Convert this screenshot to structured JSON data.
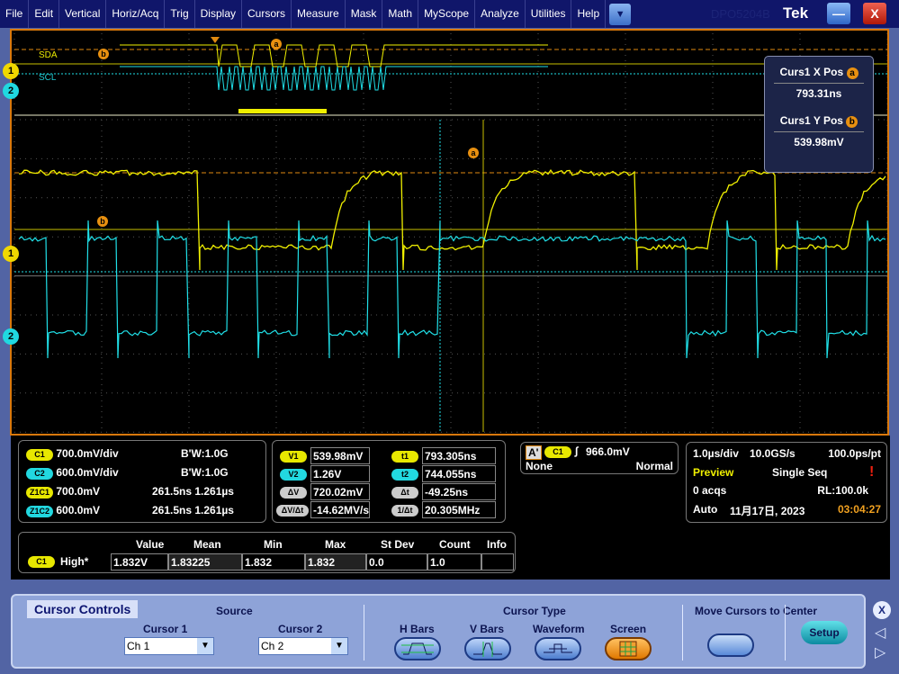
{
  "menubar": {
    "items": [
      "File",
      "Edit",
      "Vertical",
      "Horiz/Acq",
      "Trig",
      "Display",
      "Cursors",
      "Measure",
      "Mask",
      "Math",
      "MyScope",
      "Analyze",
      "Utilities",
      "Help"
    ],
    "model": "DPO5204B",
    "brand": "Tek",
    "minimize": "—",
    "close": "X"
  },
  "scope": {
    "overview_labels": {
      "sda": "SDA",
      "scl": "SCL"
    },
    "channel_markers": [
      "1",
      "2"
    ],
    "cursor_labels": {
      "a": "a",
      "b": "b"
    },
    "colors": {
      "ch1": "#f0f000",
      "ch2": "#20e0e8",
      "cursor": "#e08a10",
      "border": "#d9780c"
    },
    "cursor_readout": {
      "x_title": "Curs1 X Pos",
      "x_value": "793.31ns",
      "y_title": "Curs1 Y Pos",
      "y_value": "539.98mV"
    }
  },
  "vertical": {
    "rows": [
      {
        "badge": "C1",
        "scale": "700.0mV/div",
        "bw": "B'W:1.0G"
      },
      {
        "badge": "C2",
        "scale": "600.0mV/div",
        "bw": "B'W:1.0G"
      },
      {
        "badge": "Z1C1",
        "scale": "700.0mV",
        "bw": "261.5ns 1.261µs"
      },
      {
        "badge": "Z1C2",
        "scale": "600.0mV",
        "bw": "261.5ns 1.261µs"
      }
    ]
  },
  "cursors": {
    "v1_label": "V1",
    "v1": "539.98mV",
    "v2_label": "V2",
    "v2": "1.26V",
    "dv_label": "ΔV",
    "dv": "720.02mV",
    "dvdt_label": "ΔV/Δt",
    "dvdt": "-14.62MV/s",
    "t1_label": "t1",
    "t1": "793.305ns",
    "t2_label": "t2",
    "t2": "744.055ns",
    "dt_label": "Δt",
    "dt": "-49.25ns",
    "inv_label": "1/Δt",
    "inv": "20.305MHz"
  },
  "trigger": {
    "mode_badge": "A'",
    "source": "C1",
    "slope": "rising",
    "level": "966.0mV",
    "coupling": "None",
    "type": "Normal"
  },
  "acquisition": {
    "horiz": "1.0µs/div",
    "rate": "10.0GS/s",
    "res": "100.0ps/pt",
    "status": "Preview",
    "mode": "Single Seq",
    "acqs": "0 acqs",
    "rl": "RL:100.0k",
    "trig_mode": "Auto",
    "date": "11月17日, 2023",
    "time": "03:04:27"
  },
  "measurements": {
    "headers": [
      "Value",
      "Mean",
      "Min",
      "Max",
      "St Dev",
      "Count",
      "Info"
    ],
    "rows": [
      {
        "badge": "C1",
        "name": "High*",
        "values": [
          "1.832V",
          "1.83225",
          "1.832",
          "1.832",
          "0.0",
          "1.0",
          ""
        ]
      }
    ]
  },
  "cursor_controls": {
    "title": "Cursor Controls",
    "source_label": "Source",
    "cursor1_label": "Cursor 1",
    "cursor1_value": "Ch 1",
    "cursor2_label": "Cursor 2",
    "cursor2_value": "Ch 2",
    "type_label": "Cursor Type",
    "types": [
      "H Bars",
      "V Bars",
      "Waveform",
      "Screen"
    ],
    "selected_type": "Screen",
    "move_label": "Move Cursors to Center",
    "setup": "Setup",
    "close": "X"
  }
}
